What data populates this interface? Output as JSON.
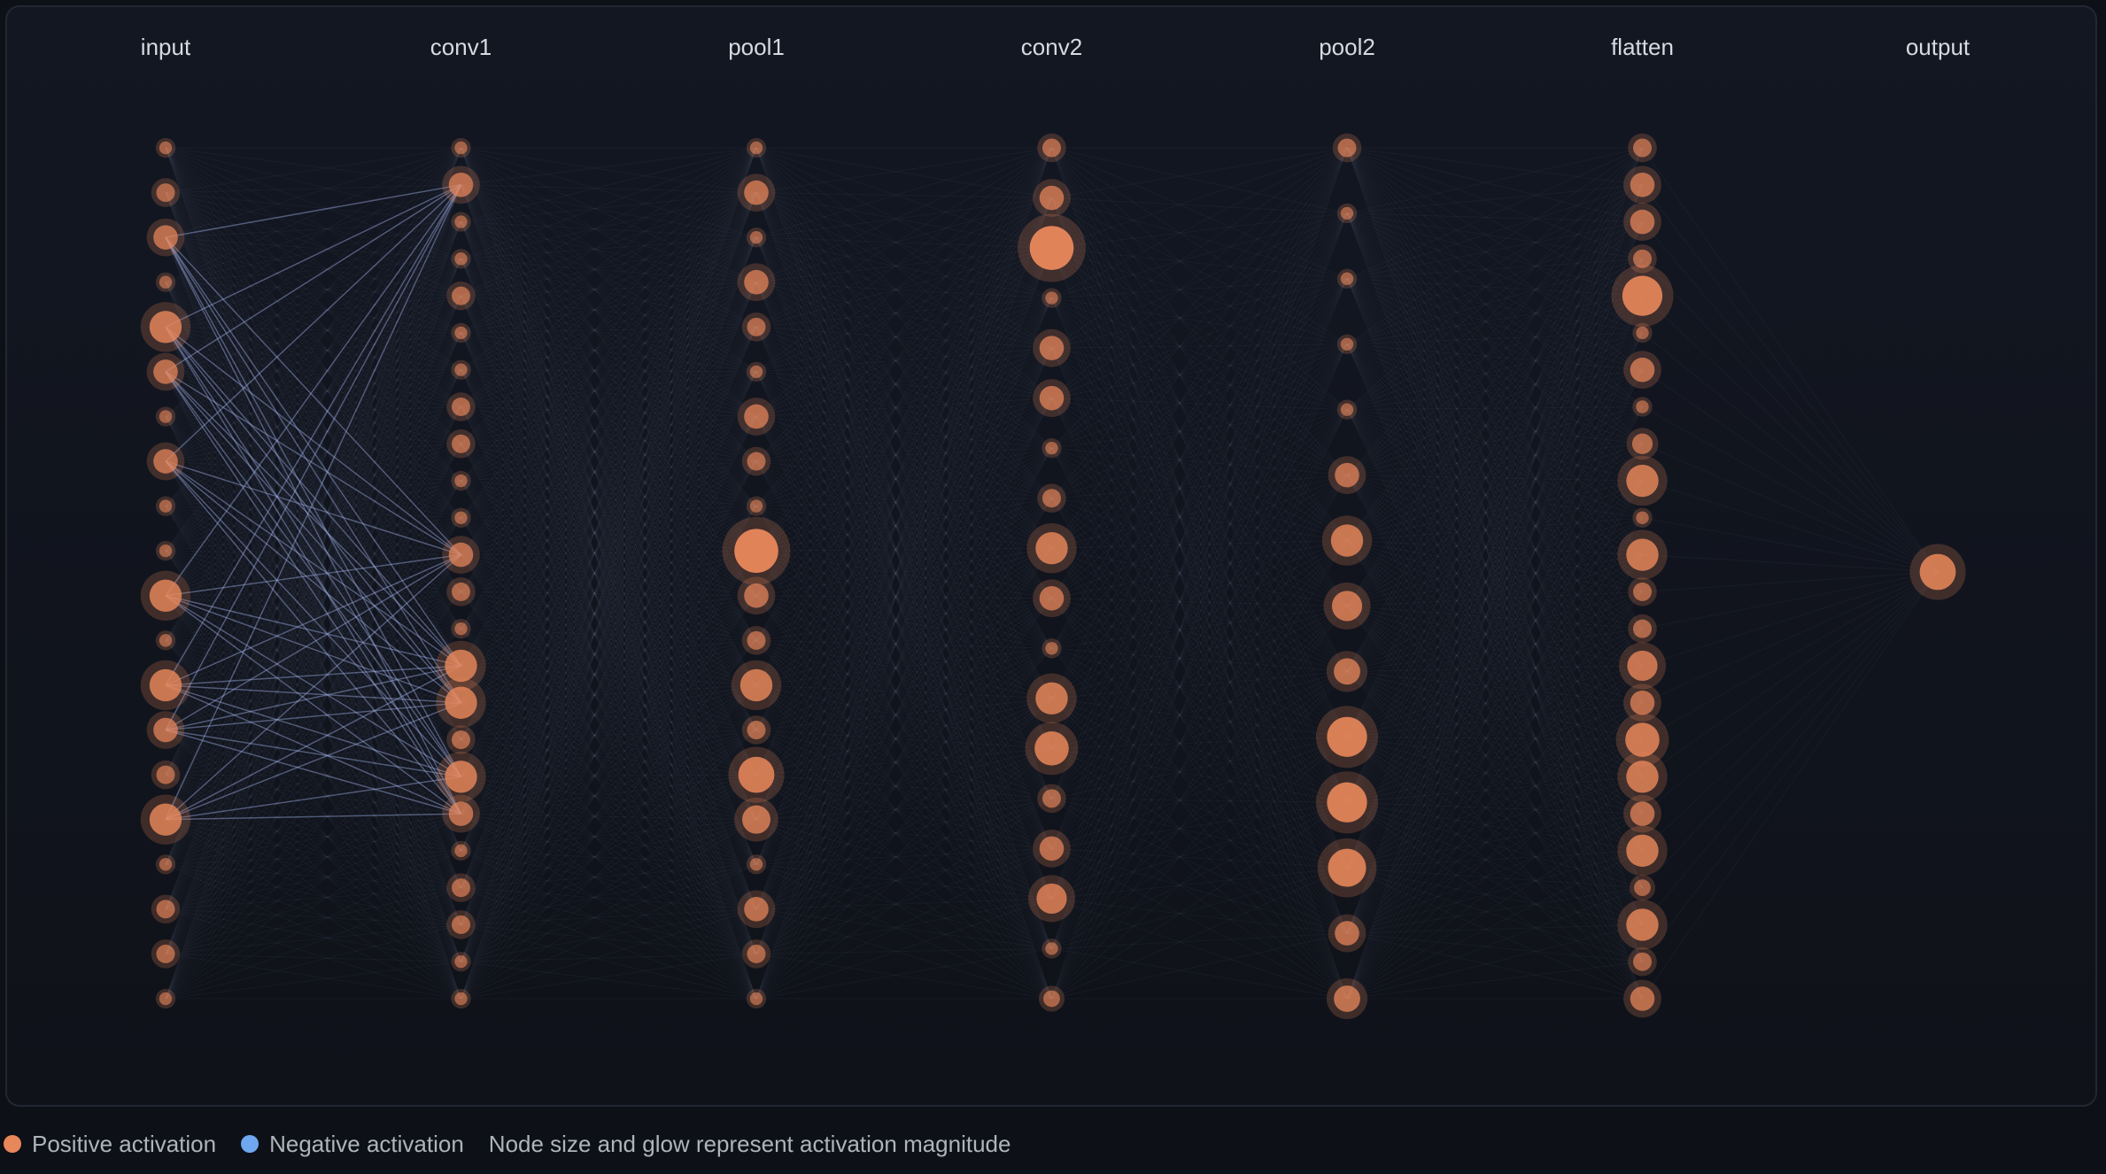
{
  "layers": [
    {
      "label": "input",
      "activations": [
        0.1,
        0.25,
        0.4,
        0.1,
        0.6,
        0.4,
        0.1,
        0.4,
        0.1,
        0.1,
        0.6,
        0.1,
        0.6,
        0.4,
        0.25,
        0.6,
        0.1,
        0.25,
        0.25,
        0.1
      ]
    },
    {
      "label": "conv1",
      "activations": [
        0.1,
        0.4,
        0.1,
        0.1,
        0.25,
        0.1,
        0.1,
        0.25,
        0.25,
        0.1,
        0.1,
        0.4,
        0.25,
        0.1,
        0.6,
        0.6,
        0.25,
        0.6,
        0.4,
        0.1,
        0.25,
        0.25,
        0.1,
        0.1
      ]
    },
    {
      "label": "pool1",
      "activations": [
        0.1,
        0.4,
        0.1,
        0.4,
        0.25,
        0.1,
        0.4,
        0.25,
        0.1,
        0.9,
        0.4,
        0.25,
        0.6,
        0.25,
        0.7,
        0.5,
        0.1,
        0.4,
        0.25,
        0.1
      ]
    },
    {
      "label": "conv2",
      "activations": [
        0.25,
        0.4,
        0.9,
        0.1,
        0.4,
        0.4,
        0.1,
        0.25,
        0.6,
        0.4,
        0.1,
        0.6,
        0.65,
        0.25,
        0.4,
        0.55,
        0.1,
        0.2
      ]
    },
    {
      "label": "pool2",
      "activations": [
        0.25,
        0.1,
        0.1,
        0.1,
        0.1,
        0.4,
        0.6,
        0.55,
        0.45,
        0.8,
        0.8,
        0.75,
        0.4,
        0.45
      ]
    },
    {
      "label": "flatten",
      "activations": [
        0.25,
        0.4,
        0.4,
        0.25,
        0.8,
        0.1,
        0.4,
        0.1,
        0.3,
        0.6,
        0.1,
        0.6,
        0.25,
        0.25,
        0.55,
        0.4,
        0.65,
        0.6,
        0.4,
        0.6,
        0.2,
        0.6,
        0.25,
        0.4
      ]
    },
    {
      "label": "output",
      "activations": [
        0.7
      ]
    }
  ],
  "legend": {
    "items": [
      {
        "label": "Positive activation",
        "color": "#e8875a"
      },
      {
        "label": "Negative activation",
        "color": "#6fa8f0"
      }
    ],
    "note": "Node size and glow represent activation magnitude"
  }
}
